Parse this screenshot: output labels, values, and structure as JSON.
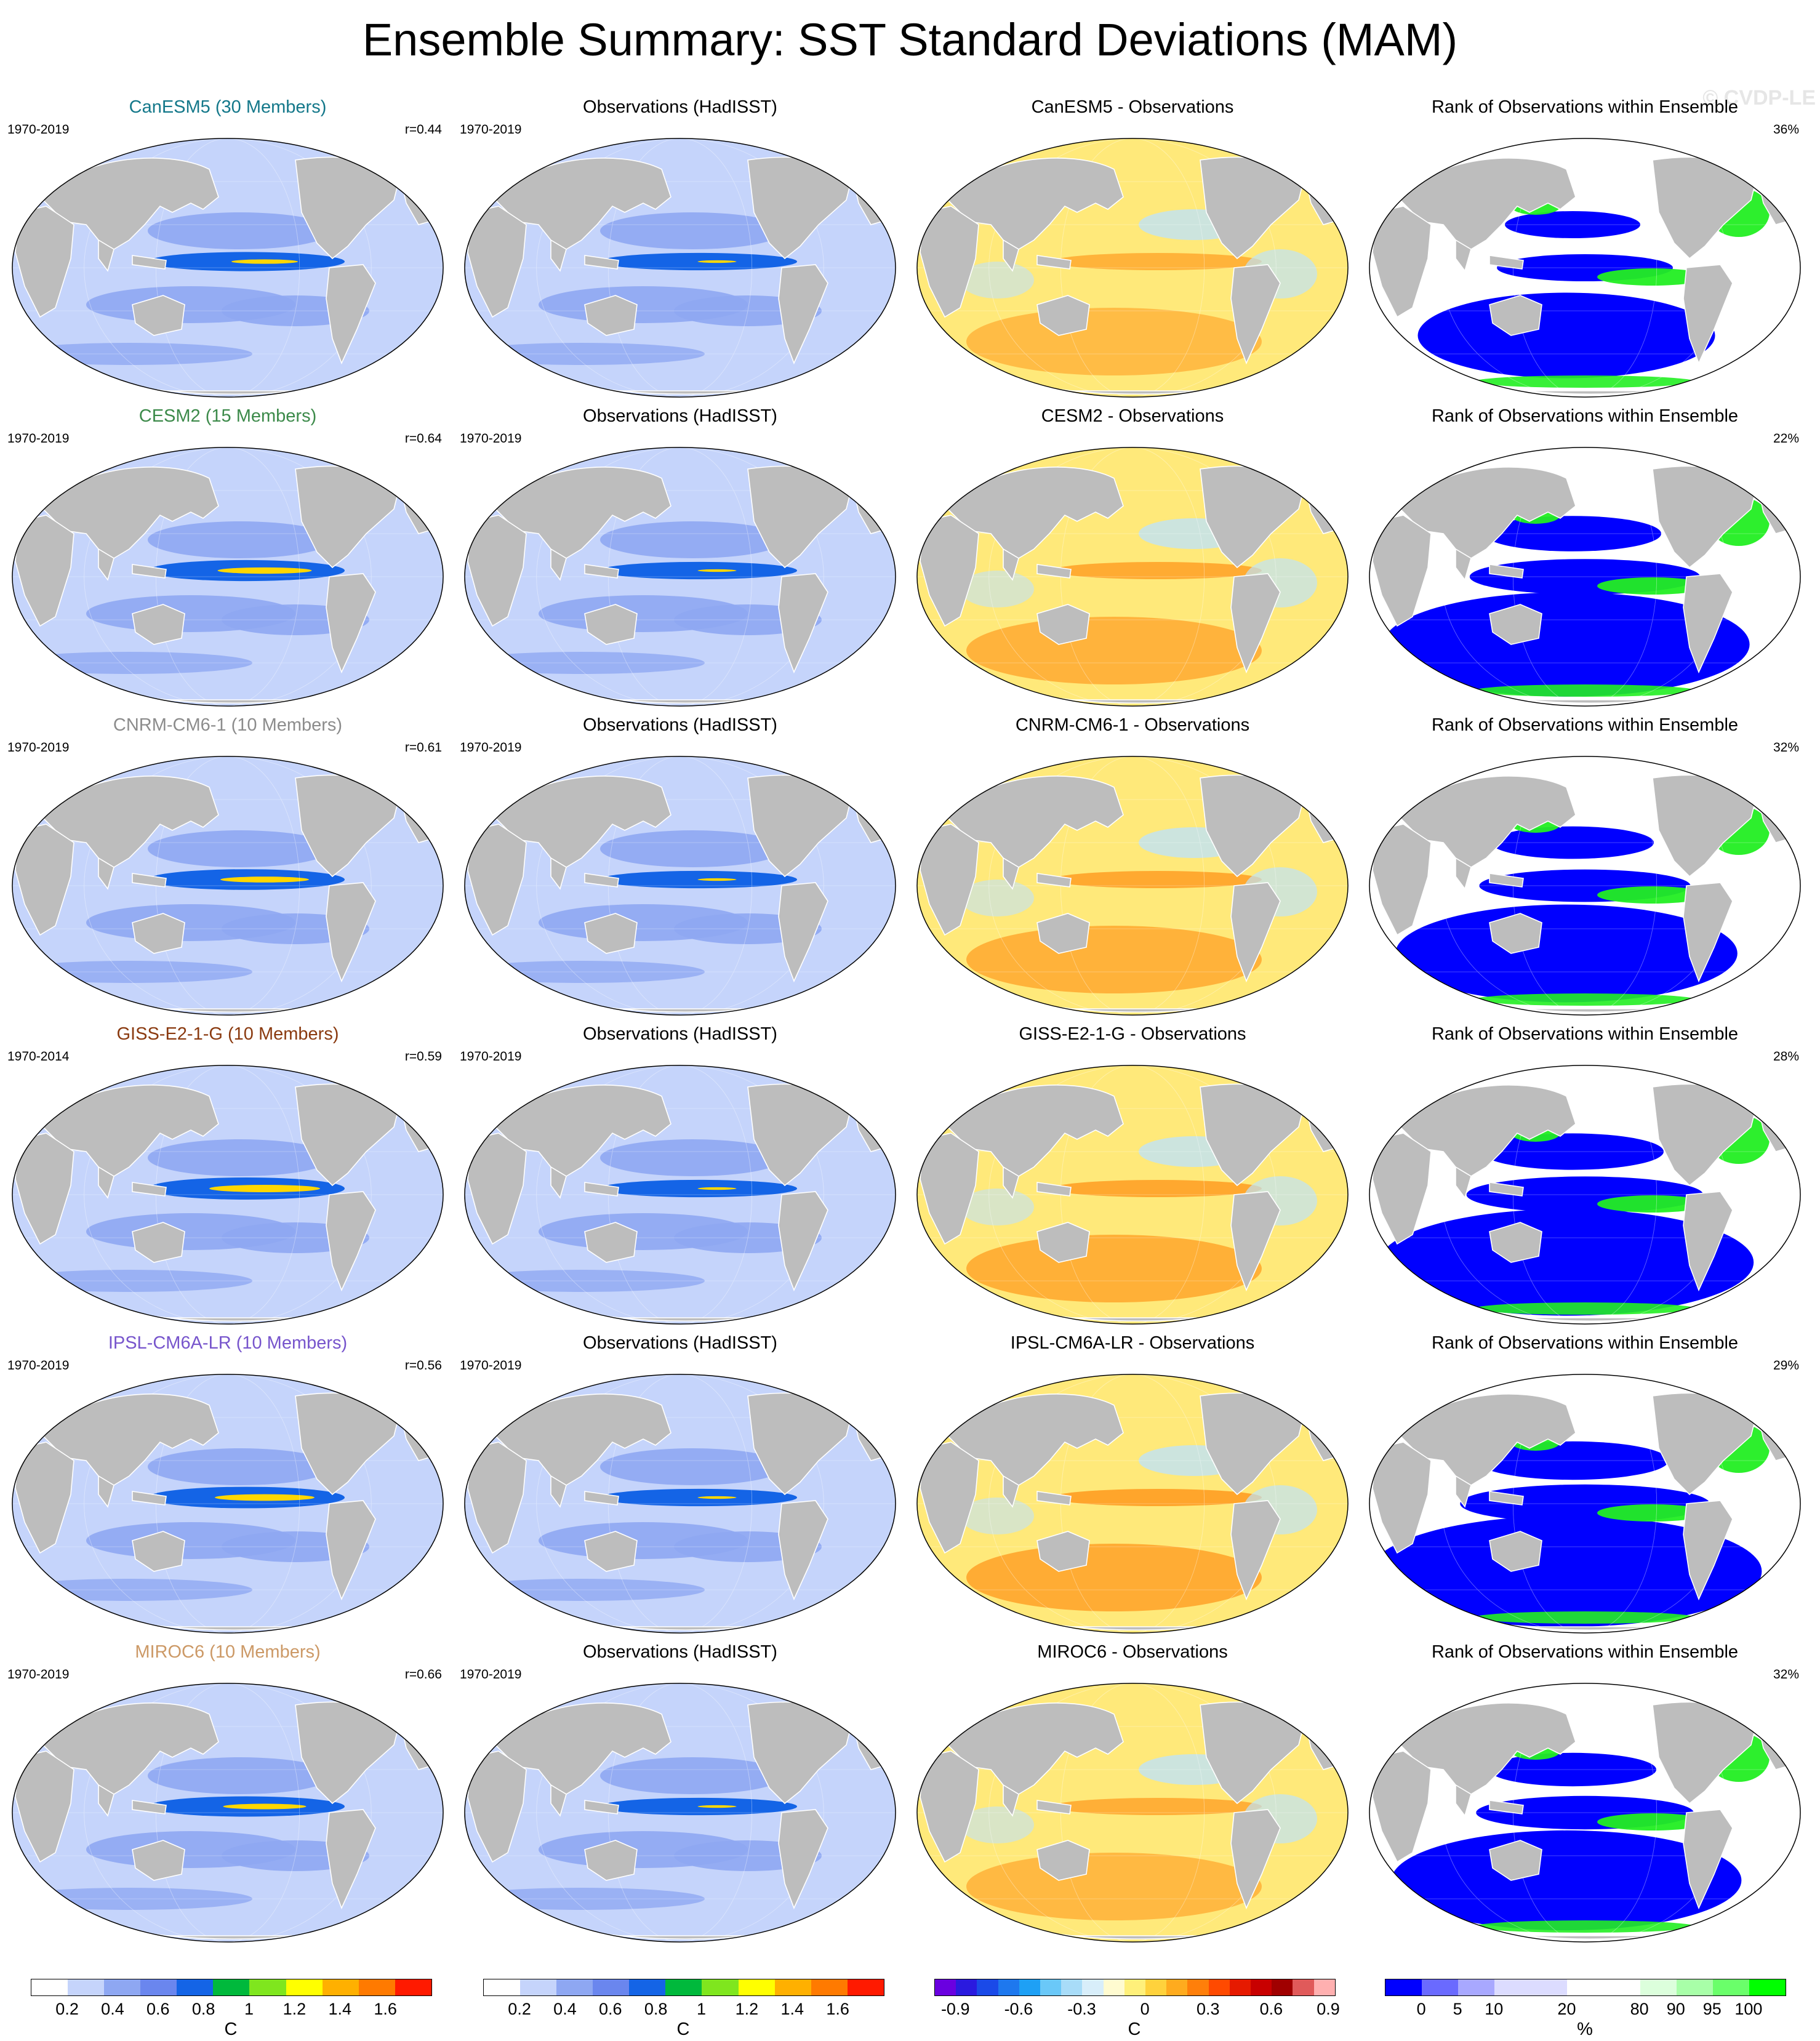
{
  "title": "Ensemble Summary: SST Standard Deviations (MAM)",
  "watermark": "© CVDP-LE",
  "colors": {
    "land": "#bdbdbd",
    "ocean_base": "#c5d4fb",
    "std_band": "#8ea7f2",
    "std_core": "#1464e6",
    "std_peak": "#ffd700",
    "diff_warm": "#ffe97a",
    "diff_hot": "#ff9b20",
    "diff_cool": "#bfe2f8",
    "rank_low": "#0000ff",
    "rank_high": "#22ee22",
    "rank_mid": "#ffffff"
  },
  "rows": [
    {
      "model": {
        "title": "CanESM5 (30 Members)",
        "period": "1970-2019",
        "r": "r=0.44",
        "title_color": "#14788a",
        "intensity": 0.6
      },
      "obs": {
        "title": "Observations (HadISST)",
        "period": "1970-2019"
      },
      "diff": {
        "title": "CanESM5 - Observations",
        "warmth": 0.5
      },
      "rank": {
        "title": "Rank of Observations within Ensemble",
        "percent": "36%",
        "blue_fraction": 0.55
      }
    },
    {
      "model": {
        "title": "CESM2 (15 Members)",
        "period": "1970-2019",
        "r": "r=0.64",
        "title_color": "#3c8a4a",
        "intensity": 0.85
      },
      "obs": {
        "title": "Observations (HadISST)",
        "period": "1970-2019"
      },
      "diff": {
        "title": "CESM2 - Observations",
        "warmth": 0.75
      },
      "rank": {
        "title": "Rank of Observations within Ensemble",
        "percent": "22%",
        "blue_fraction": 0.72
      }
    },
    {
      "model": {
        "title": "CNRM-CM6-1 (10 Members)",
        "period": "1970-2019",
        "r": "r=0.61",
        "title_color": "#8c8c8c",
        "intensity": 0.8
      },
      "obs": {
        "title": "Observations (HadISST)",
        "period": "1970-2019"
      },
      "diff": {
        "title": "CNRM-CM6-1 - Observations",
        "warmth": 0.8
      },
      "rank": {
        "title": "Rank of Observations within Ensemble",
        "percent": "32%",
        "blue_fraction": 0.66
      }
    },
    {
      "model": {
        "title": "GISS-E2-1-G (10 Members)",
        "period": "1970-2014",
        "r": "r=0.59",
        "title_color": "#8a3a10",
        "intensity": 1.0
      },
      "obs": {
        "title": "Observations (HadISST)",
        "period": "1970-2019"
      },
      "diff": {
        "title": "GISS-E2-1-G - Observations",
        "warmth": 0.85
      },
      "rank": {
        "title": "Rank of Observations within Ensemble",
        "percent": "28%",
        "blue_fraction": 0.74
      }
    },
    {
      "model": {
        "title": "IPSL-CM6A-LR (10 Members)",
        "period": "1970-2019",
        "r": "r=0.56",
        "title_color": "#7755cc",
        "intensity": 0.9
      },
      "obs": {
        "title": "Observations (HadISST)",
        "period": "1970-2019"
      },
      "diff": {
        "title": "IPSL-CM6A-LR - Observations",
        "warmth": 0.95
      },
      "rank": {
        "title": "Rank of Observations within Ensemble",
        "percent": "29%",
        "blue_fraction": 0.78
      }
    },
    {
      "model": {
        "title": "MIROC6 (10 Members)",
        "period": "1970-2019",
        "r": "r=0.66",
        "title_color": "#cc9966",
        "intensity": 0.75
      },
      "obs": {
        "title": "Observations (HadISST)",
        "period": "1970-2019"
      },
      "diff": {
        "title": "MIROC6 - Observations",
        "warmth": 0.6
      },
      "rank": {
        "title": "Rank of Observations within Ensemble",
        "percent": "32%",
        "blue_fraction": 0.68
      }
    }
  ],
  "colorbars": [
    {
      "units": "C",
      "swatches": [
        "#ffffff",
        "#c5d4fb",
        "#8ea7f2",
        "#6a86ee",
        "#1464e6",
        "#00b93c",
        "#7fe61e",
        "#ffff00",
        "#ffb000",
        "#ff7a00",
        "#ff1a00"
      ],
      "ticks": [
        "0.2",
        "0.4",
        "0.6",
        "0.8",
        "1",
        "1.2",
        "1.4",
        "1.6"
      ]
    },
    {
      "units": "C",
      "swatches": [
        "#ffffff",
        "#c5d4fb",
        "#8ea7f2",
        "#6a86ee",
        "#1464e6",
        "#00b93c",
        "#7fe61e",
        "#ffff00",
        "#ffb000",
        "#ff7a00",
        "#ff1a00"
      ],
      "ticks": [
        "0.2",
        "0.4",
        "0.6",
        "0.8",
        "1",
        "1.2",
        "1.4",
        "1.6"
      ]
    },
    {
      "units": "C",
      "swatches": [
        "#6a00e0",
        "#2a1adf",
        "#1a4ae8",
        "#1e78ee",
        "#1ea0f5",
        "#6ac8f8",
        "#a8dcf8",
        "#d8eefa",
        "#fffbd0",
        "#fff07a",
        "#ffd23c",
        "#ffab1e",
        "#ff7f0a",
        "#ff4a00",
        "#e61a00",
        "#c80000",
        "#a00000",
        "#e05a5a",
        "#ffb0b0"
      ],
      "ticks": [
        "-0.9",
        "-0.6",
        "-0.3",
        "0",
        "0.3",
        "0.6",
        "0.9"
      ]
    },
    {
      "units": "%",
      "swatches": [
        "#0000ff",
        "#6a6aff",
        "#a8a8ff",
        "#dcdcff",
        "#dcdcff",
        "#ffffff",
        "#ffffff",
        "#dcffdc",
        "#a8ffa8",
        "#6aff6a",
        "#00ff00"
      ],
      "ticks": [
        "0",
        "5",
        "10",
        "20",
        "80",
        "90",
        "95",
        "100"
      ]
    }
  ]
}
